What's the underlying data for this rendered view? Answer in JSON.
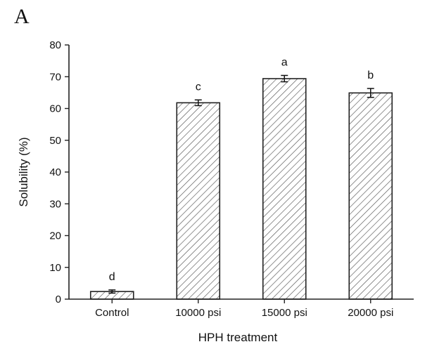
{
  "panel_label": "A",
  "chart_data": {
    "type": "bar",
    "categories": [
      "Control",
      "10000 psi",
      "15000 psi",
      "20000 psi"
    ],
    "values": [
      2.4,
      61.8,
      69.4,
      64.9
    ],
    "errors": [
      0.5,
      0.9,
      1.0,
      1.4
    ],
    "significance": [
      "d",
      "c",
      "a",
      "b"
    ],
    "xlabel": "HPH treatment",
    "ylabel": "Solubility (%)",
    "ylim": [
      0,
      80
    ],
    "yticks": [
      0,
      10,
      20,
      30,
      40,
      50,
      60,
      70,
      80
    ],
    "bar_fill": "hatched",
    "bar_color": "#333333",
    "grid": false
  }
}
